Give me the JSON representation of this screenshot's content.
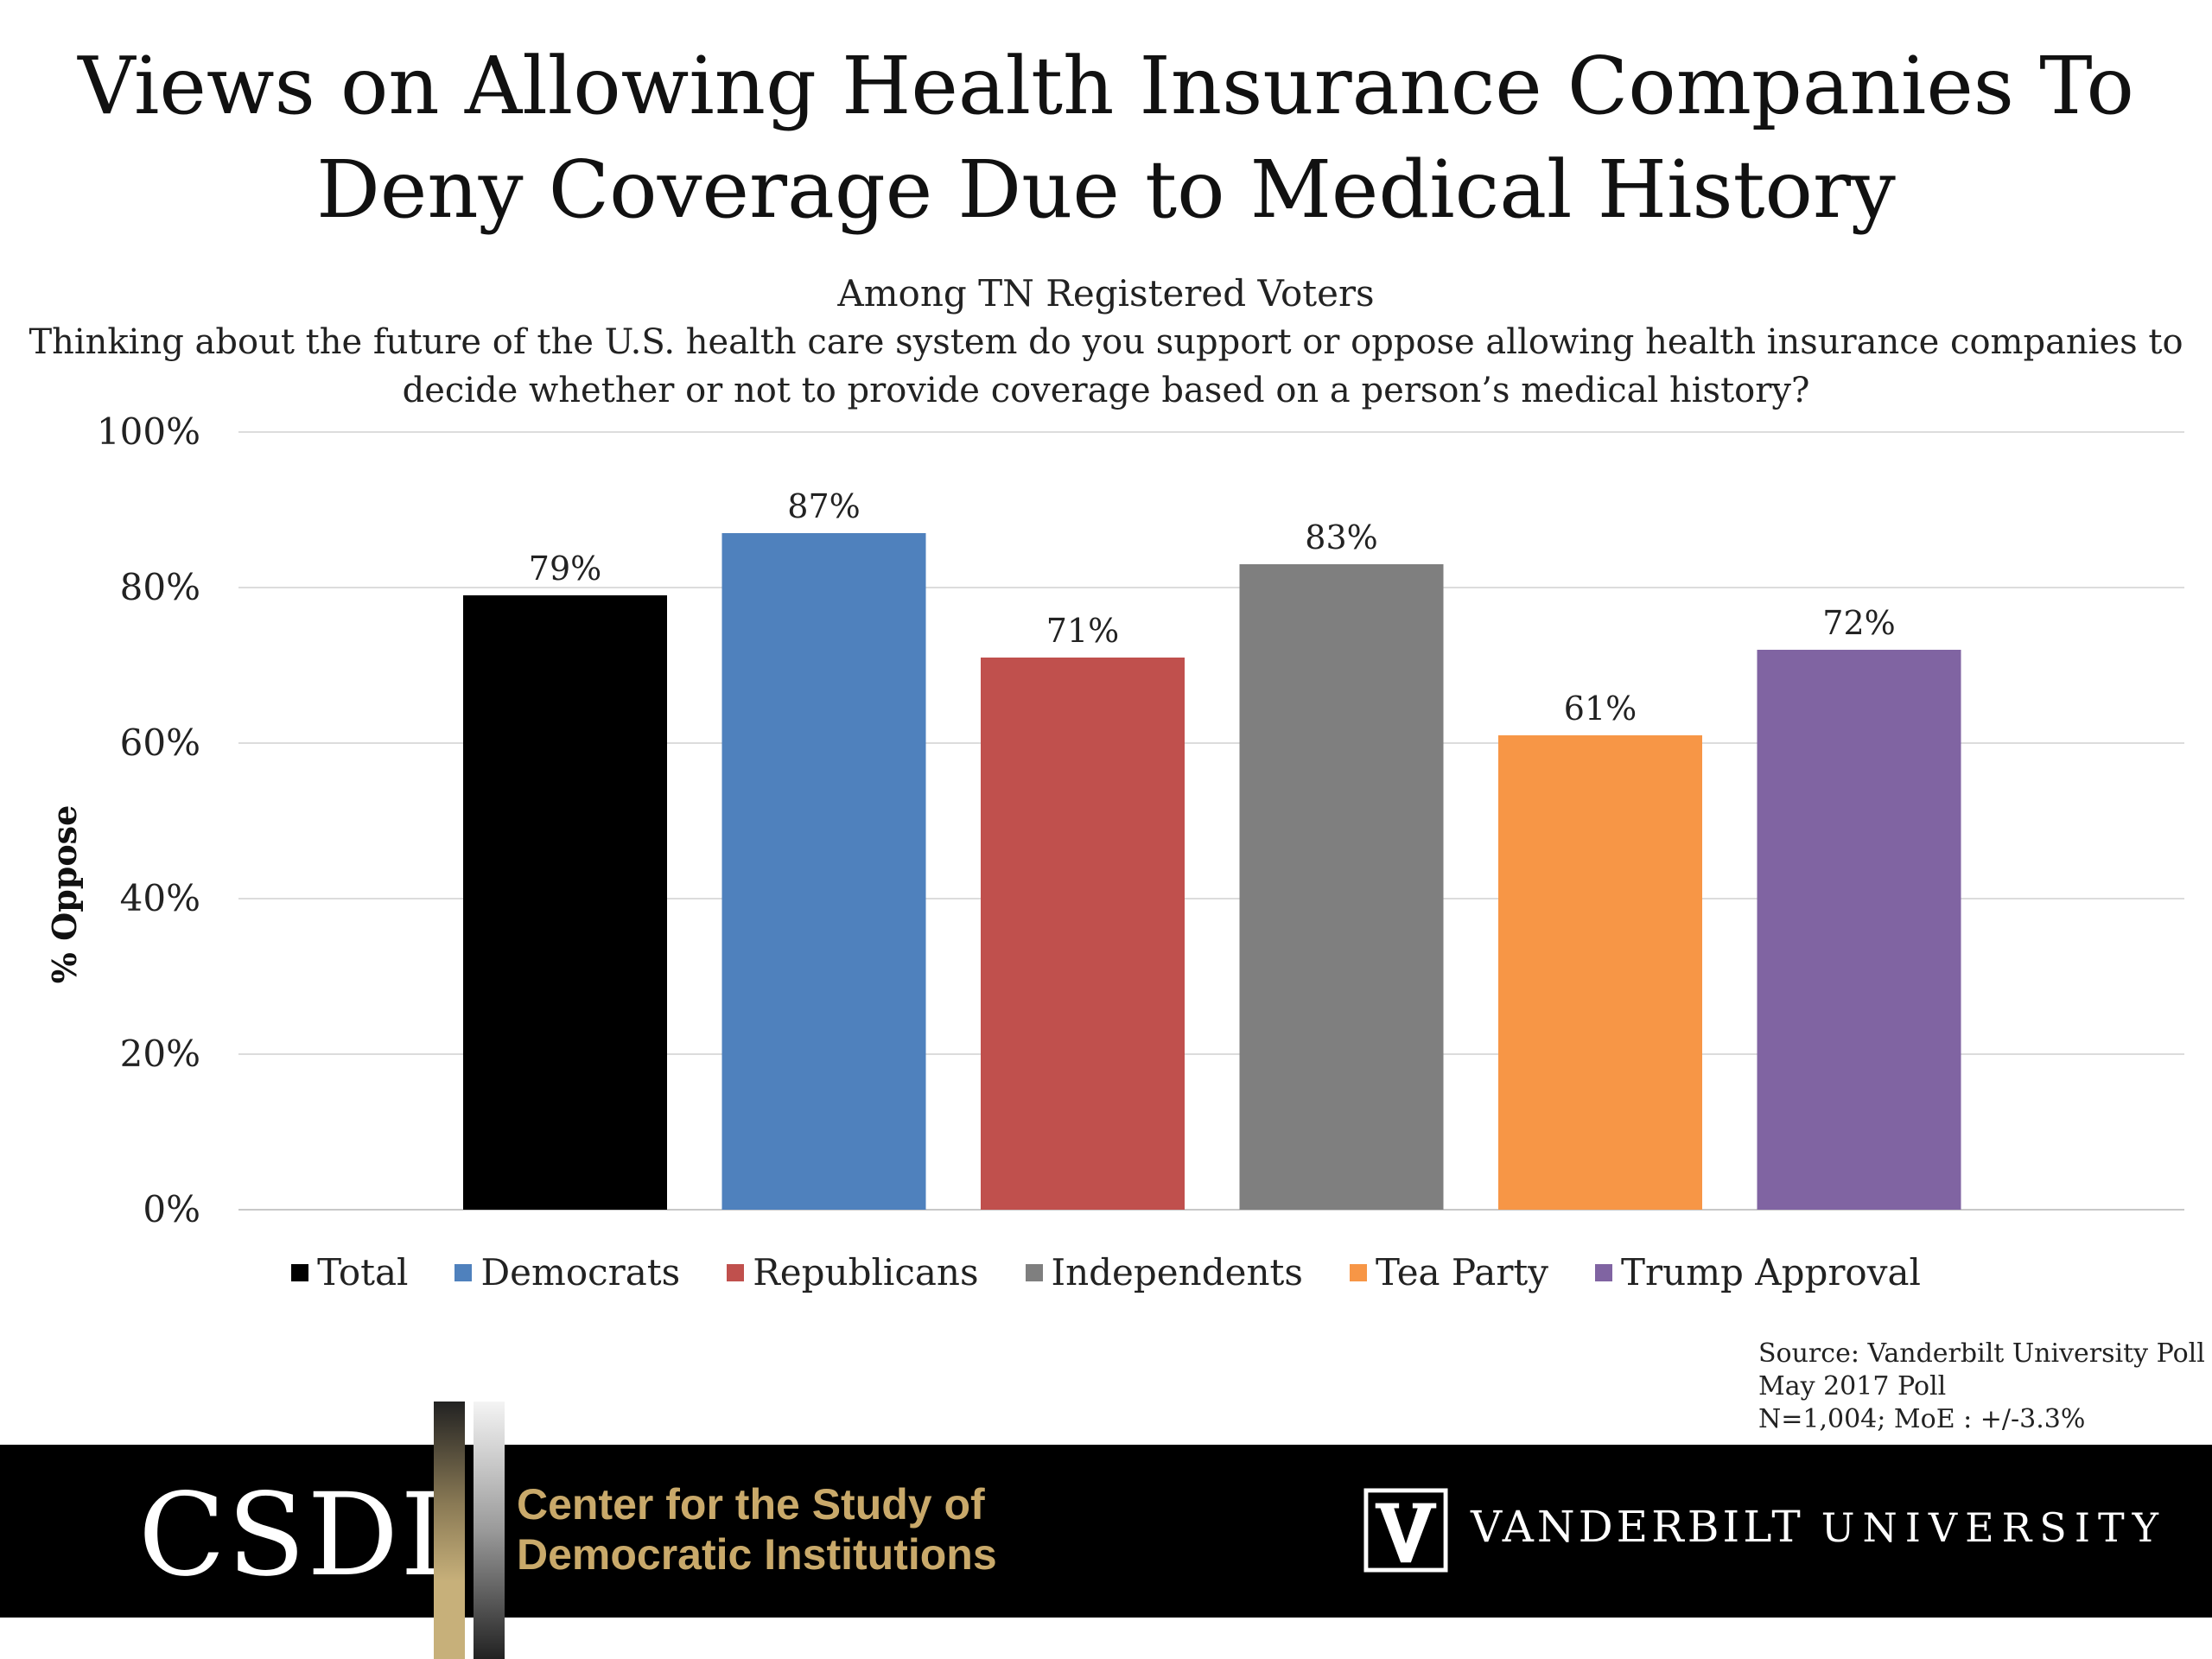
{
  "header": {
    "title_line1": "Views on Allowing Health Insurance Companies To",
    "title_line2": "Deny Coverage Due to Medical History",
    "subtitle": "Among TN Registered Voters",
    "question_line1": "Thinking about the future of the U.S. health care system do you support or oppose allowing health insurance companies to",
    "question_line2": "decide whether or not to provide coverage based on a person’s medical history?"
  },
  "chart_data": {
    "type": "bar",
    "ylabel": "% Oppose",
    "ylim": [
      0,
      100
    ],
    "yticks": [
      "0%",
      "20%",
      "40%",
      "60%",
      "80%",
      "100%"
    ],
    "grid": true,
    "legend_position": "bottom",
    "categories": [
      "Total",
      "Democrats",
      "Republicans",
      "Independents",
      "Tea Party",
      "Trump Approval"
    ],
    "values": [
      79,
      87,
      71,
      83,
      61,
      72
    ],
    "data_labels": [
      "79%",
      "87%",
      "71%",
      "83%",
      "61%",
      "72%"
    ],
    "colors": [
      "#000000",
      "#4f81bd",
      "#c0504d",
      "#7f7f7f",
      "#f79646",
      "#8064a2"
    ]
  },
  "source": {
    "line1": "Source: Vanderbilt University Poll",
    "line2": "May 2017 Poll",
    "line3": "N=1,004; MoE : +/-3.3%"
  },
  "footer": {
    "csdi_logo": "CSDI",
    "csdi_name_line1": "Center for the Study of",
    "csdi_name_line2": "Democratic Institutions",
    "vu_bold": "VANDERBILT",
    "vu_light": "UNIVERSITY"
  }
}
